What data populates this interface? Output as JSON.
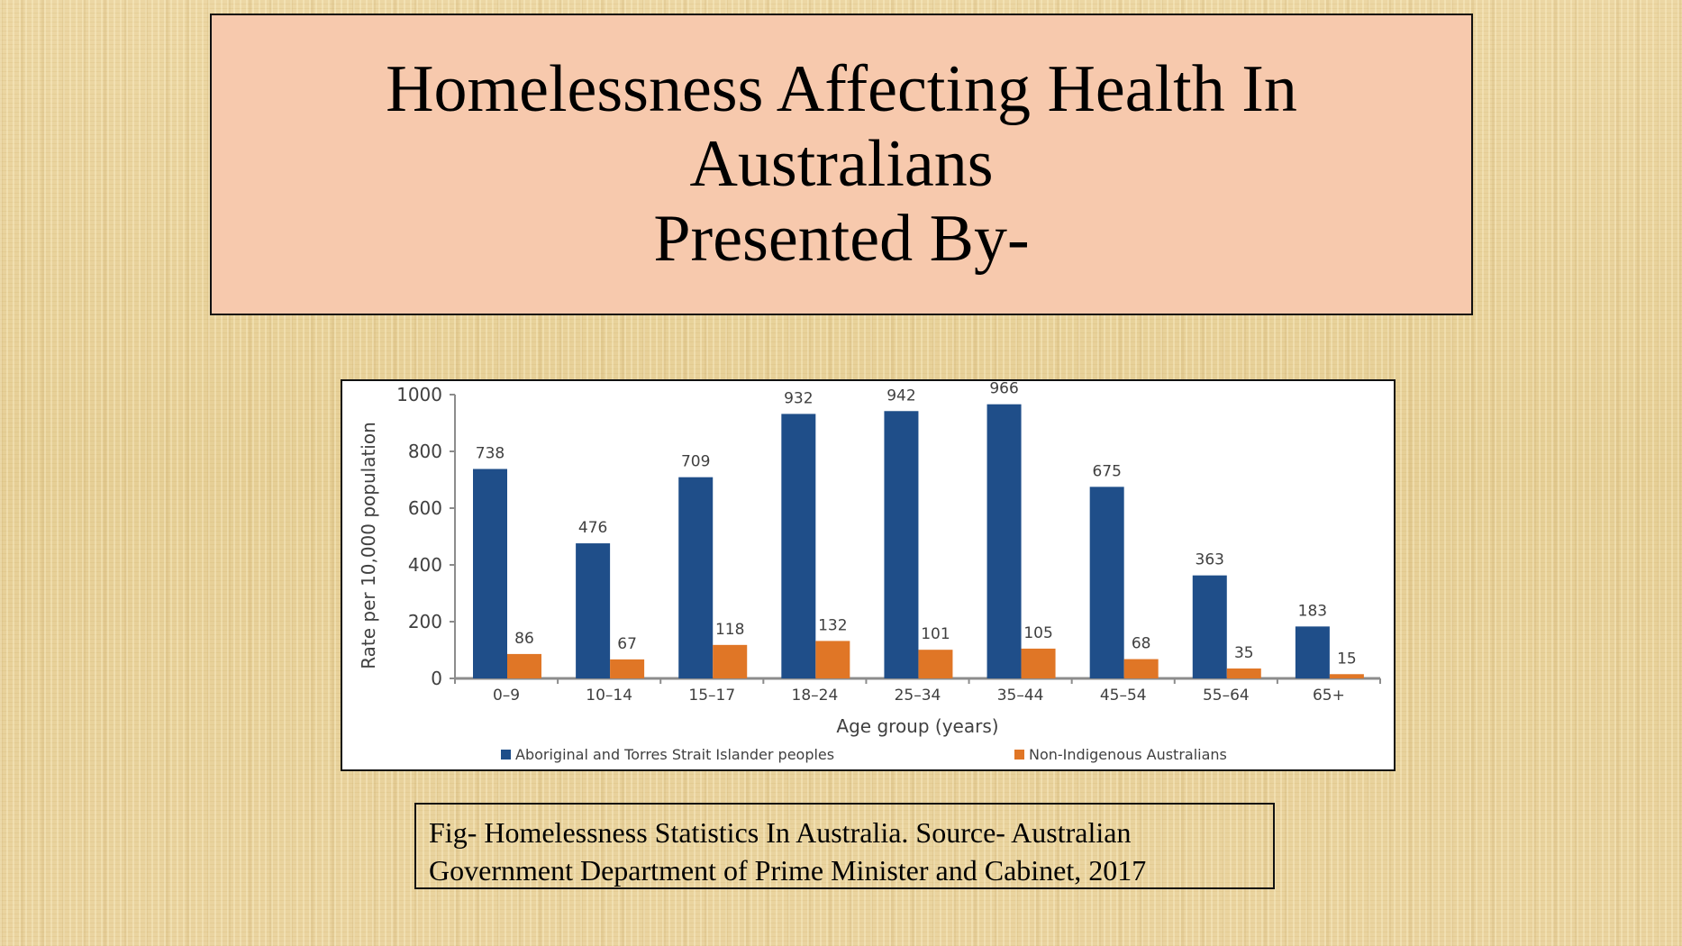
{
  "slide": {
    "title_lines": [
      "Homelessness Affecting Health In",
      "Australians",
      "Presented By-"
    ],
    "caption_lines": [
      "Fig- Homelessness Statistics In Australia. Source- Australian",
      "Government Department of Prime Minister and Cabinet, 2017"
    ],
    "colors": {
      "title_box_bg": "#f7c9ad",
      "background": "#e8d199",
      "series_indigenous": "#1f4e89",
      "series_non_indigenous": "#e07626"
    }
  },
  "chart_data": {
    "type": "bar",
    "title": "",
    "xlabel": "Age group (years)",
    "ylabel": "Rate per 10,000 population",
    "ylim": [
      0,
      1000
    ],
    "yticks": [
      0,
      200,
      400,
      600,
      800,
      1000
    ],
    "grid": false,
    "legend_position": "bottom",
    "categories": [
      "0–9",
      "10–14",
      "15–17",
      "18–24",
      "25–34",
      "35–44",
      "45–54",
      "55–64",
      "65+"
    ],
    "series": [
      {
        "name": "Aboriginal and Torres Strait Islander peoples",
        "color": "#1f4e89",
        "values": [
          738,
          476,
          709,
          932,
          942,
          966,
          675,
          363,
          183
        ]
      },
      {
        "name": "Non-Indigenous Australians",
        "color": "#e07626",
        "values": [
          86,
          67,
          118,
          132,
          101,
          105,
          68,
          35,
          15
        ]
      }
    ]
  }
}
